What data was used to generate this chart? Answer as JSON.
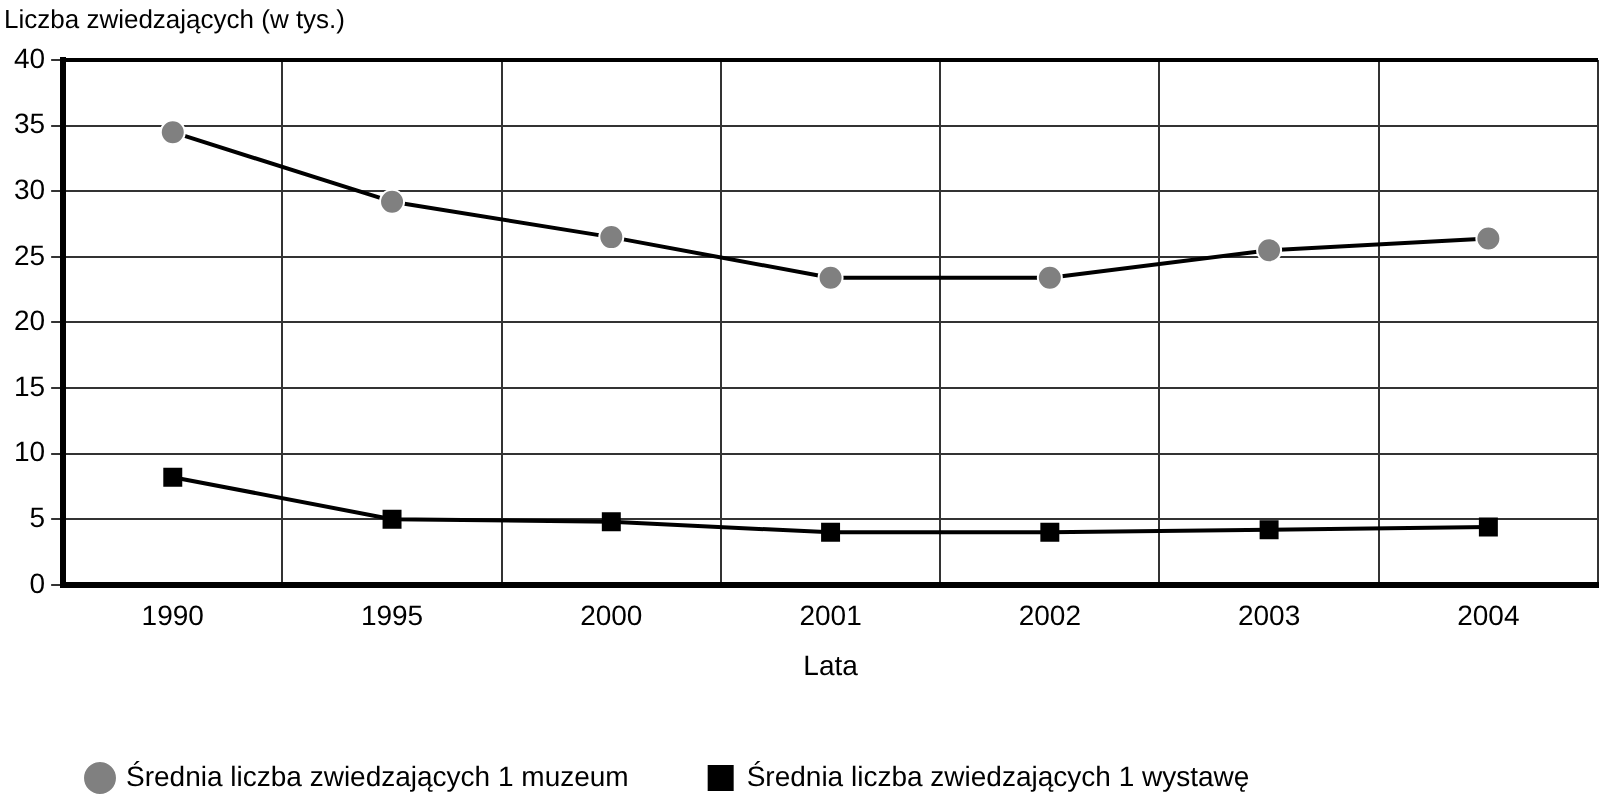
{
  "chart_data": {
    "type": "line",
    "ylabel": "Liczba zwiedzających (w tys.)",
    "xlabel": "Lata",
    "categories": [
      "1990",
      "1995",
      "2000",
      "2001",
      "2002",
      "2003",
      "2004"
    ],
    "series": [
      {
        "name": "Średnia liczba zwiedzających 1 muzeum",
        "color": "#808080",
        "marker": "circle",
        "values": [
          34.5,
          29.2,
          26.5,
          23.4,
          23.4,
          25.5,
          26.4
        ]
      },
      {
        "name": "Średnia liczba zwiedzających 1 wystawę",
        "color": "#000000",
        "marker": "square",
        "values": [
          8.2,
          5.0,
          4.8,
          4.0,
          4.0,
          4.2,
          4.4
        ]
      }
    ],
    "ylim": [
      0,
      40
    ],
    "yticks": [
      0,
      5,
      10,
      15,
      20,
      25,
      30,
      35,
      40
    ],
    "grid": true,
    "legend": "bottom",
    "line_style": "solid"
  }
}
